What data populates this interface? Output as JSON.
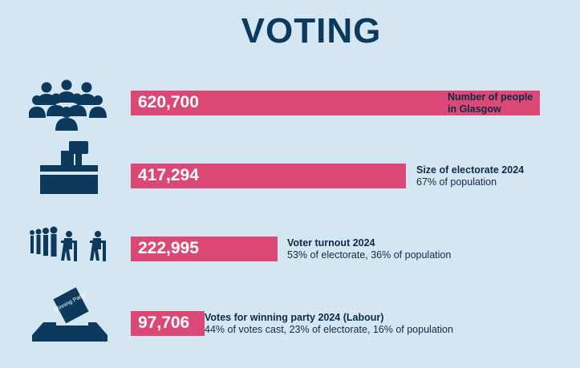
{
  "title": "VOTING",
  "colors": {
    "background": "#d5e6f3",
    "bar": "#dc4876",
    "icon": "#0d3a5c",
    "text": "#0d2b48"
  },
  "chart_data": {
    "type": "bar",
    "orientation": "horizontal",
    "title": "VOTING",
    "max_value": 620700,
    "items": [
      {
        "value": 620700,
        "value_label": "620,700",
        "icon": "crowd-icon",
        "label_line1": "Number of people",
        "label_line2": "in Glasgow"
      },
      {
        "value": 417294,
        "value_label": "417,294",
        "icon": "ballot-box-icon",
        "label_line1": "Size of electorate 2024",
        "label_line2": "67% of population"
      },
      {
        "value": 222995,
        "value_label": "222,995",
        "icon": "voters-queue-icon",
        "label_line1": "Voter turnout 2024",
        "label_line2": "53% of electorate, 36% of population"
      },
      {
        "value": 97706,
        "value_label": "97,706",
        "icon": "winning-party-ballot-icon",
        "ballot_text": "Winning Party",
        "label_line1": "Votes for winning party 2024 (Labour)",
        "label_line2": "44% of votes cast, 23% of electorate, 16% of population"
      }
    ]
  }
}
